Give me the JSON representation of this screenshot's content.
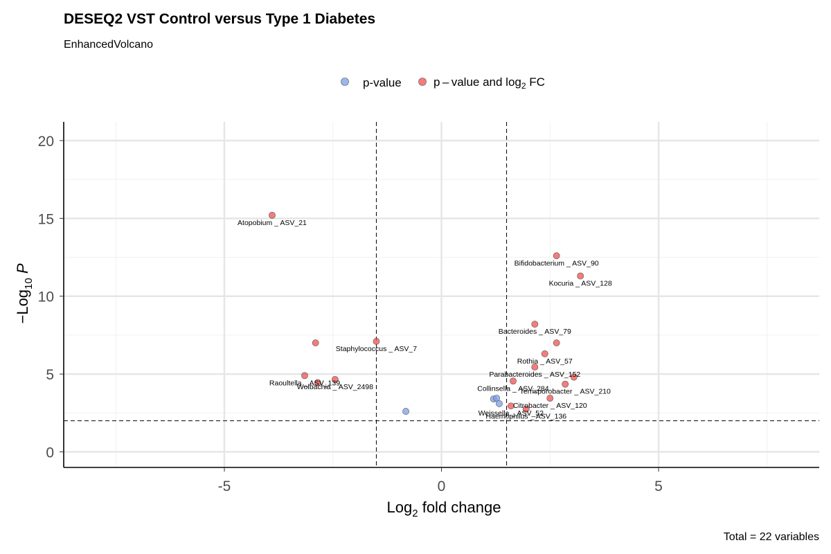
{
  "chart_data": {
    "type": "scatter",
    "title": "DESEQ2 VST Control versus Type 1 Diabetes",
    "subtitle": "EnhancedVolcano",
    "xlabel": {
      "prefix": "Log",
      "sub": "2",
      "suffix": " fold change"
    },
    "ylabel": {
      "prefix": "−Log",
      "sub": "10",
      "suffix": " P"
    },
    "caption": "Total = 22 variables",
    "xlim": [
      -8.7,
      8.7
    ],
    "ylim": [
      -1,
      21.2
    ],
    "x_ticks": [
      -5,
      0,
      5
    ],
    "y_ticks": [
      0,
      5,
      10,
      15,
      20
    ],
    "grid": true,
    "legend_position": "top",
    "thresholds": {
      "x": [
        -1.5,
        1.5
      ],
      "y": 2
    },
    "legend": [
      {
        "key": "p",
        "label": "p-value",
        "color": "#7b9de8"
      },
      {
        "key": "pfc",
        "label_prefix": "p – value and log",
        "label_sub": "2",
        "label_suffix": " FC",
        "color": "#f25050"
      }
    ],
    "series": [
      {
        "name": "p-value",
        "color": "#7b9de8",
        "points": [
          {
            "x": -0.82,
            "y": 2.6
          },
          {
            "x": 1.2,
            "y": 3.4
          },
          {
            "x": 1.27,
            "y": 3.45
          },
          {
            "x": 1.33,
            "y": 3.1
          }
        ]
      },
      {
        "name": "p–value and log2 FC",
        "color": "#f25050",
        "points": [
          {
            "x": -3.9,
            "y": 15.2,
            "label": "Atopobium _ ASV_21"
          },
          {
            "x": -2.9,
            "y": 7.0
          },
          {
            "x": -1.5,
            "y": 7.1,
            "label": "Staphylococcus _ ASV_7"
          },
          {
            "x": -3.15,
            "y": 4.9,
            "label": "Raoultella _ ASV_139"
          },
          {
            "x": -2.85,
            "y": 4.45
          },
          {
            "x": -2.45,
            "y": 4.65,
            "label": "Wolbachia _ ASV_2498"
          },
          {
            "x": 2.65,
            "y": 12.6,
            "label": "Bifidobacterium _ ASV_90"
          },
          {
            "x": 3.2,
            "y": 11.3,
            "label": "Kocuria _ ASV_128"
          },
          {
            "x": 2.15,
            "y": 8.2,
            "label": "Bacteroides _ ASV_79"
          },
          {
            "x": 2.65,
            "y": 7.0
          },
          {
            "x": 2.38,
            "y": 6.3,
            "label": "Rothia _ ASV_57"
          },
          {
            "x": 2.15,
            "y": 5.45,
            "label": "Parabacteroides _ ASV_152"
          },
          {
            "x": 1.65,
            "y": 4.55,
            "label": "Collinsella _ ASV_284"
          },
          {
            "x": 3.05,
            "y": 4.8
          },
          {
            "x": 2.85,
            "y": 4.35,
            "label": "Terrisporobacter _ ASV_210"
          },
          {
            "x": 2.5,
            "y": 3.45,
            "label": "Citrobacter _ ASV_120"
          },
          {
            "x": 1.6,
            "y": 2.95,
            "label": "Weissella _ ASV_52"
          },
          {
            "x": 1.95,
            "y": 2.75,
            "label": "Haemophilus _ ASV_136"
          }
        ]
      }
    ]
  }
}
